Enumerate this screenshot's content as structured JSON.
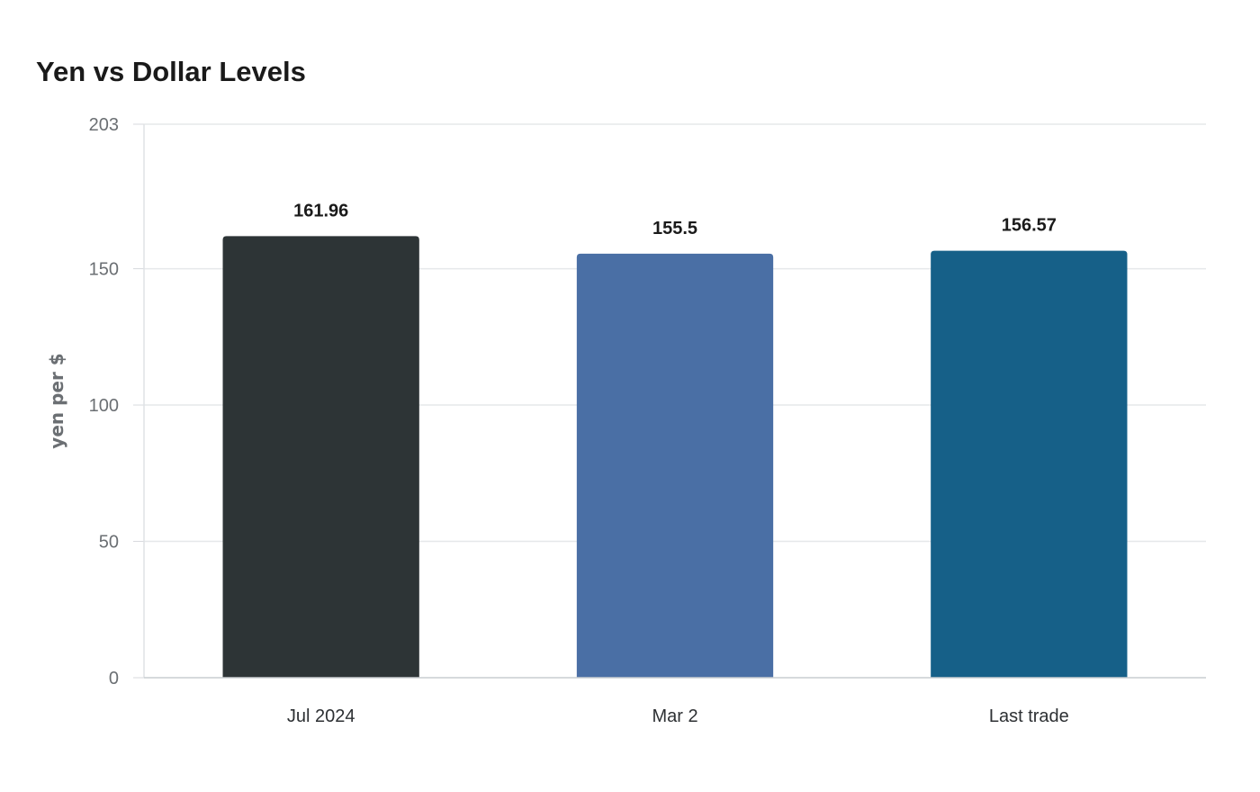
{
  "chart_data": {
    "type": "bar",
    "title": "Yen vs Dollar Levels",
    "xlabel": "",
    "ylabel": "yen per $",
    "categories": [
      "Jul 2024",
      "Mar 2",
      "Last trade"
    ],
    "values": [
      161.96,
      155.5,
      156.57
    ],
    "value_labels": [
      "161.96",
      "155.5",
      "156.57"
    ],
    "colors": [
      "#2d3436",
      "#4a6fa5",
      "#166088"
    ],
    "ylim": [
      0,
      203
    ],
    "yticks": [
      0,
      50,
      100,
      150,
      203
    ],
    "grid": true,
    "legend": "none"
  }
}
